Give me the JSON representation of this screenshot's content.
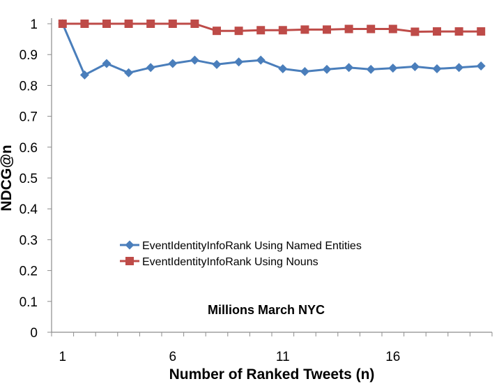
{
  "chart_data": {
    "type": "line",
    "title": "",
    "annotation": "Millions March NYC",
    "xlabel": "Number of Ranked Tweets (n)",
    "ylabel": "NDCG@n",
    "x": [
      1,
      2,
      3,
      4,
      5,
      6,
      7,
      8,
      9,
      10,
      11,
      12,
      13,
      14,
      15,
      16,
      17,
      18,
      19,
      20
    ],
    "x_ticks": [
      1,
      6,
      11,
      16
    ],
    "y_ticks": [
      "0",
      "0.1",
      "0.2",
      "0.3",
      "0.4",
      "0.5",
      "0.6",
      "0.7",
      "0.8",
      "0.9",
      "1"
    ],
    "ylim": [
      0,
      1
    ],
    "xlim": [
      0.5,
      20.5
    ],
    "grid": false,
    "legend_position": "center-left",
    "series": [
      {
        "name": "EventIdentityInfoRank Using Named Entities",
        "color": "#4a7ebb",
        "marker": "diamond",
        "values": [
          1.0,
          0.834,
          0.871,
          0.841,
          0.858,
          0.871,
          0.882,
          0.868,
          0.876,
          0.882,
          0.854,
          0.845,
          0.852,
          0.858,
          0.852,
          0.856,
          0.861,
          0.854,
          0.858,
          0.863
        ]
      },
      {
        "name": "EventIdentityInfoRank Using Nouns",
        "color": "#be4b48",
        "marker": "square",
        "values": [
          1.0,
          1.0,
          1.0,
          1.0,
          1.0,
          1.0,
          1.0,
          0.977,
          0.977,
          0.979,
          0.979,
          0.981,
          0.981,
          0.983,
          0.983,
          0.983,
          0.974,
          0.975,
          0.975,
          0.975
        ]
      }
    ]
  }
}
